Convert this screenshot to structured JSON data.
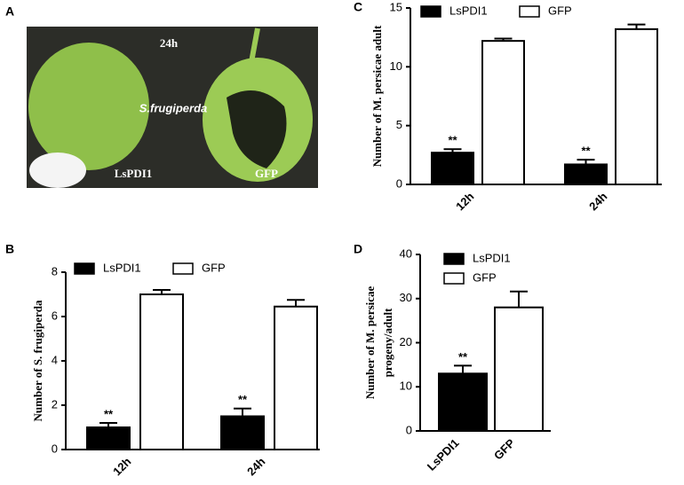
{
  "panel_labels": [
    "A",
    "B",
    "C",
    "D"
  ],
  "photo": {
    "time": "24h",
    "species": "S.frugiperda",
    "labels": [
      "LsPDI1",
      "GFP"
    ]
  },
  "chart_data": [
    {
      "type": "bar",
      "y_label": "Number of S. frugiperda",
      "categories": [
        "12h",
        "24h"
      ],
      "series": [
        {
          "name": "LsPDI1",
          "color": "#000000",
          "values": [
            1.0,
            1.5
          ],
          "errors": [
            0.2,
            0.35
          ],
          "significance": [
            "**",
            "**"
          ]
        },
        {
          "name": "GFP",
          "color": "#ffffff",
          "values": [
            7.0,
            6.45
          ],
          "errors": [
            0.2,
            0.3
          ]
        }
      ],
      "ylim": [
        0,
        8
      ],
      "yticks": [
        0,
        2,
        4,
        6,
        8
      ],
      "legend": "top-left"
    },
    {
      "type": "bar",
      "y_label": "Number of M. persicae adult",
      "categories": [
        "12h",
        "24h"
      ],
      "series": [
        {
          "name": "LsPDI1",
          "color": "#000000",
          "values": [
            2.7,
            1.7
          ],
          "errors": [
            0.3,
            0.4
          ],
          "significance": [
            "**",
            "**"
          ]
        },
        {
          "name": "GFP",
          "color": "#ffffff",
          "values": [
            12.2,
            13.2
          ],
          "errors": [
            0.2,
            0.4
          ]
        }
      ],
      "ylim": [
        0,
        15
      ],
      "yticks": [
        0,
        5,
        10,
        15
      ],
      "legend": "top-left"
    },
    {
      "type": "bar",
      "y_label": [
        "Number of M. persicae",
        "progeny/adult"
      ],
      "categories": [
        "LsPDI1",
        "GFP"
      ],
      "series": [
        {
          "name": "LsPDI1",
          "color": "#000000",
          "values": [
            13,
            null
          ],
          "errors": [
            1.8,
            null
          ],
          "significance": [
            "**",
            null
          ]
        },
        {
          "name": "GFP",
          "color": "#ffffff",
          "values": [
            null,
            28
          ],
          "errors": [
            null,
            3.6
          ]
        }
      ],
      "ylim": [
        0,
        40
      ],
      "yticks": [
        0,
        10,
        20,
        30,
        40
      ],
      "legend": "top-left",
      "grouped": false
    }
  ]
}
